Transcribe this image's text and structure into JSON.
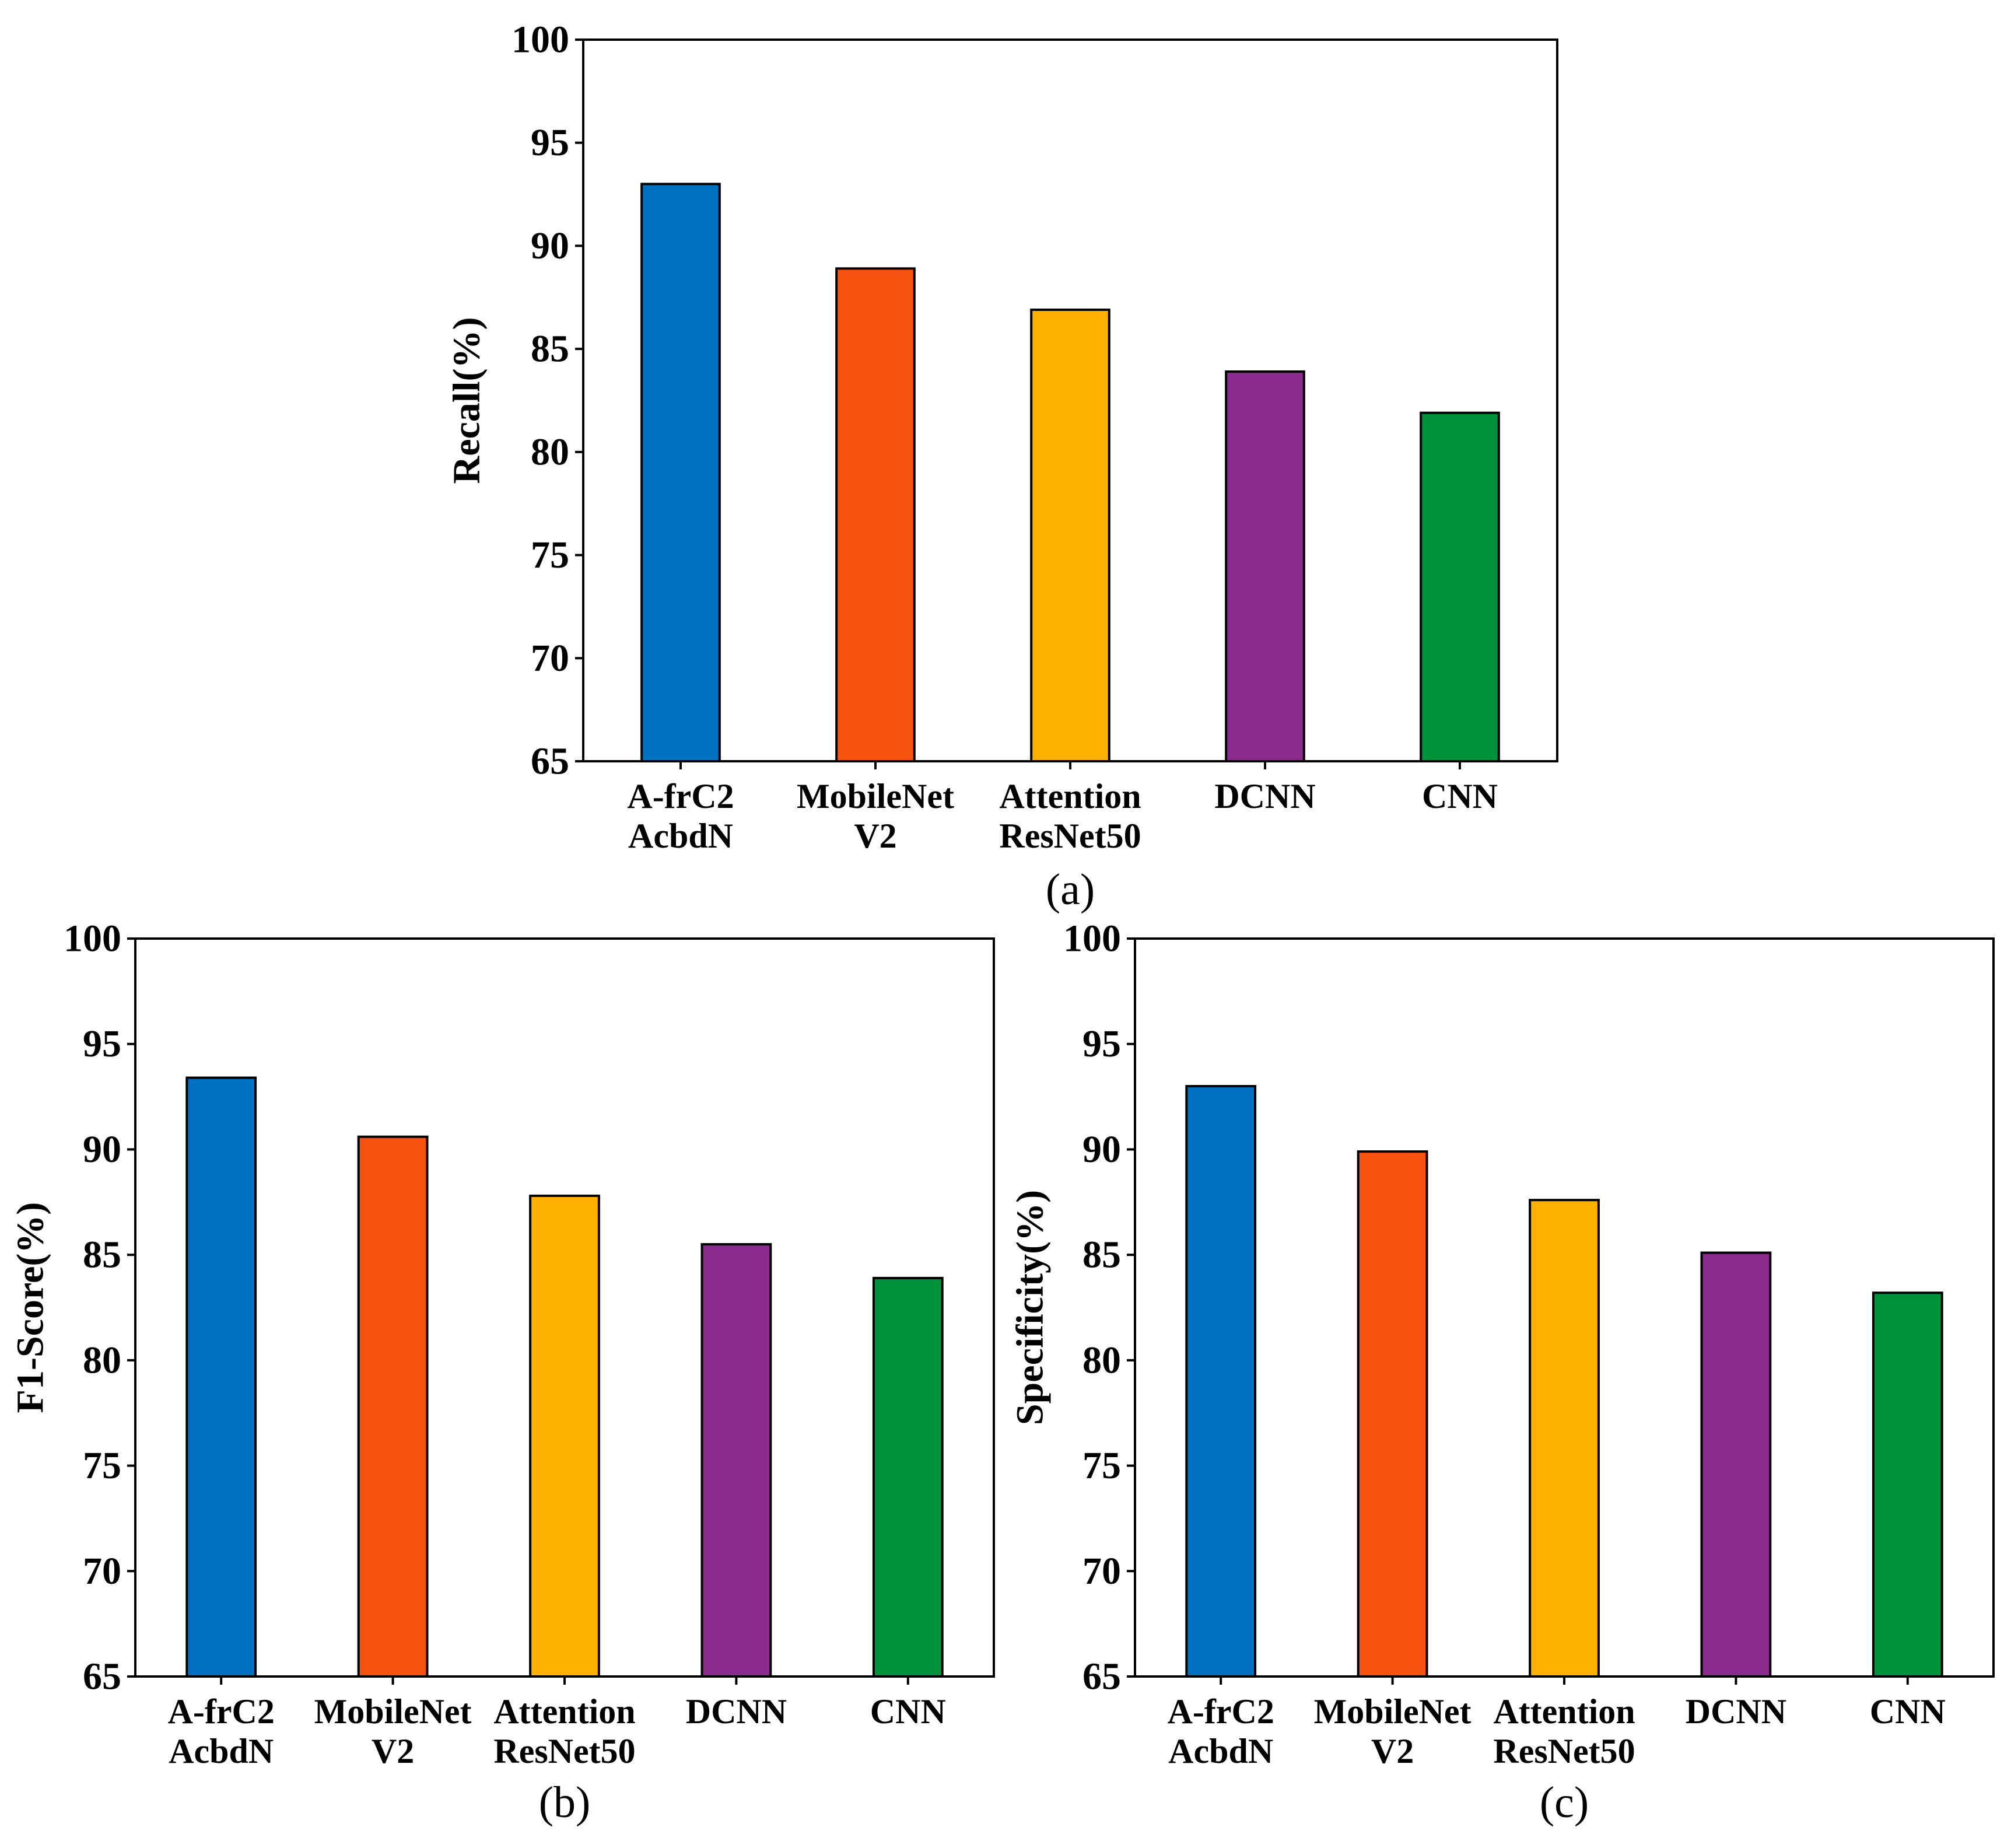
{
  "chart_data": [
    {
      "id": "a",
      "type": "bar",
      "caption": "(a)",
      "ylabel": "Recall(%)",
      "ylim": [
        65,
        100
      ],
      "yticks": [
        65,
        70,
        75,
        80,
        85,
        90,
        95,
        100
      ],
      "categories": [
        [
          "A-frC2",
          "AcbdN"
        ],
        [
          "MobileNet",
          "V2"
        ],
        [
          "Attention",
          "ResNet50"
        ],
        [
          "DCNN"
        ],
        [
          "CNN"
        ]
      ],
      "values": [
        93.0,
        88.9,
        86.9,
        83.9,
        81.9
      ],
      "colors": [
        "#0070c0",
        "#f7520f",
        "#fdb000",
        "#8b2b8e",
        "#00923b"
      ]
    },
    {
      "id": "b",
      "type": "bar",
      "caption": "(b)",
      "ylabel": "F1-Score(%)",
      "ylim": [
        65,
        100
      ],
      "yticks": [
        65,
        70,
        75,
        80,
        85,
        90,
        95,
        100
      ],
      "categories": [
        [
          "A-frC2",
          "AcbdN"
        ],
        [
          "MobileNet",
          "V2"
        ],
        [
          "Attention",
          "ResNet50"
        ],
        [
          "DCNN"
        ],
        [
          "CNN"
        ]
      ],
      "values": [
        93.4,
        90.6,
        87.8,
        85.5,
        83.9
      ],
      "colors": [
        "#0070c0",
        "#f7520f",
        "#fdb000",
        "#8b2b8e",
        "#00923b"
      ]
    },
    {
      "id": "c",
      "type": "bar",
      "caption": "(c)",
      "ylabel": "Specificity(%)",
      "ylim": [
        65,
        100
      ],
      "yticks": [
        65,
        70,
        75,
        80,
        85,
        90,
        95,
        100
      ],
      "categories": [
        [
          "A-frC2",
          "AcbdN"
        ],
        [
          "MobileNet",
          "V2"
        ],
        [
          "Attention",
          "ResNet50"
        ],
        [
          "DCNN"
        ],
        [
          "CNN"
        ]
      ],
      "values": [
        93.0,
        89.9,
        87.6,
        85.1,
        83.2
      ],
      "colors": [
        "#0070c0",
        "#f7520f",
        "#fdb000",
        "#8b2b8e",
        "#00923b"
      ]
    }
  ]
}
